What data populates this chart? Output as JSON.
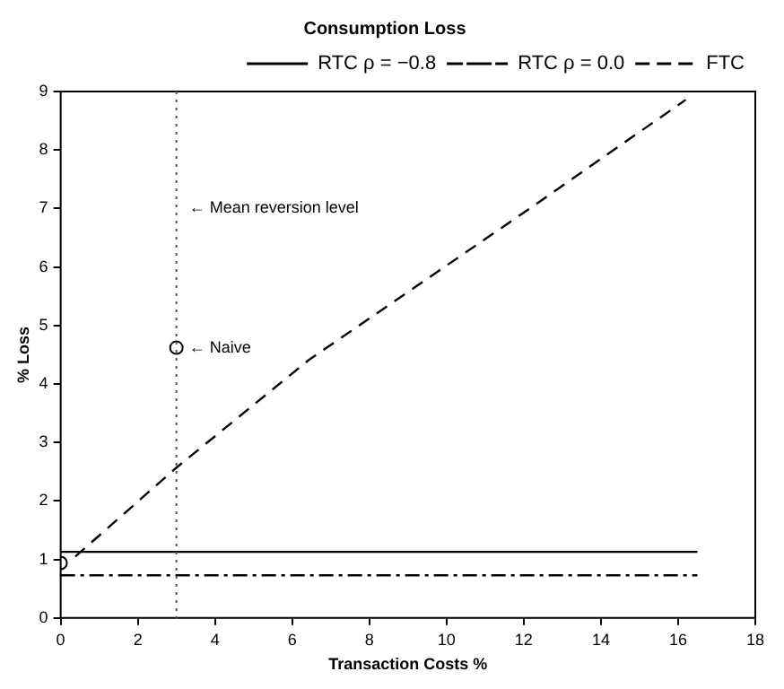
{
  "chart_data": {
    "type": "line",
    "title": "Consumption Loss",
    "xlabel": "Transaction Costs %",
    "ylabel": "% Loss",
    "xlim": [
      0,
      18
    ],
    "xticks": [
      0,
      2,
      4,
      6,
      8,
      10,
      12,
      14,
      16,
      18
    ],
    "ylim": [
      0,
      9
    ],
    "yticks": [
      0,
      1,
      2,
      3,
      4,
      5,
      6,
      7,
      8,
      9
    ],
    "grid": false,
    "legend": "top right",
    "marker": "none",
    "series": [
      {
        "name": "RTC ρ = −0.8",
        "color": "#000000",
        "line_style": "solid",
        "x": [
          0,
          16.5
        ],
        "values": [
          1.13,
          1.13
        ]
      },
      {
        "name": "RTC ρ = 0.0",
        "color": "#000000",
        "line_style": "dashdot",
        "x": [
          0,
          16.5
        ],
        "values": [
          0.73,
          0.73
        ]
      },
      {
        "name": "FTC",
        "color": "#000000",
        "line_style": "dashed",
        "x": [
          0.38,
          3,
          6.43,
          12.2,
          16.2
        ],
        "values": [
          1.05,
          2.57,
          4.41,
          7.02,
          8.86
        ]
      },
      {
        "type": "scatter",
        "color": "#000000",
        "marker": "circle",
        "x": [
          0,
          3
        ],
        "values": [
          0.94,
          4.62
        ]
      }
    ],
    "ref_lines": [
      {
        "axis": "x",
        "value": 3,
        "color": "#555555",
        "line_style": "dotted"
      }
    ],
    "annotations": [
      {
        "text": "← Mean reversion level",
        "x": 3,
        "y": 7
      },
      {
        "text": "← Naive",
        "x": 3,
        "y": 4.62
      }
    ]
  }
}
